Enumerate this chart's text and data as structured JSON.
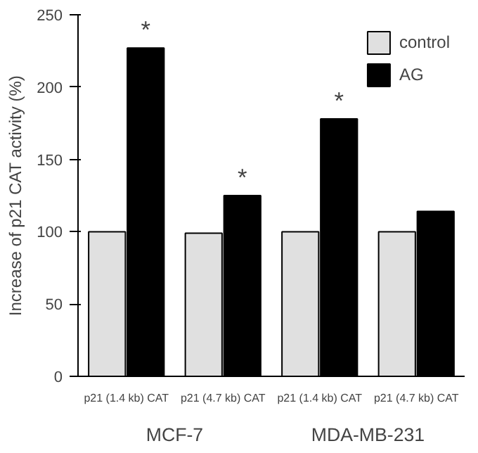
{
  "chart_data": {
    "type": "bar",
    "ylabel": "Increase of p21 CAT activity (%)",
    "categories": [
      "p21 (1.4 kb) CAT",
      "p21 (4.7 kb) CAT",
      "p21 (1.4 kb) CAT",
      "p21 (4.7 kb) CAT"
    ],
    "series": [
      {
        "name": "control",
        "color": "#e0e0e0",
        "values": [
          100,
          99,
          100,
          100
        ]
      },
      {
        "name": "AG",
        "color": "#000000",
        "values": [
          227,
          125,
          178,
          114
        ]
      }
    ],
    "ylim": [
      0,
      250
    ],
    "yticks": [
      0,
      50,
      100,
      150,
      200,
      250
    ],
    "grid": false,
    "legend": "top right",
    "annotations": [
      "*",
      "*",
      "*",
      "MCF-7",
      "MDA-MB-231"
    ]
  }
}
